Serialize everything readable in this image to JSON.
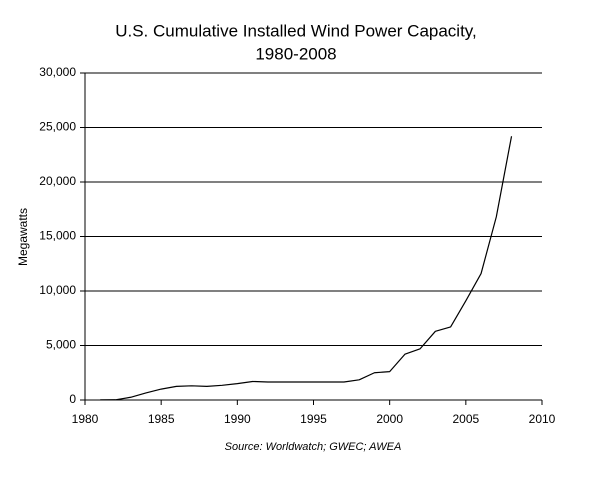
{
  "chart_data": {
    "type": "line",
    "title": [
      "U.S. Cumulative Installed Wind Power Capacity,",
      "1980-2008"
    ],
    "y_label": "Megawatts",
    "source": "Source: Worldwatch; GWEC; AWEA",
    "x": [
      1981,
      1982,
      1983,
      1984,
      1985,
      1986,
      1987,
      1988,
      1989,
      1990,
      1991,
      1992,
      1993,
      1994,
      1995,
      1996,
      1997,
      1998,
      1999,
      2000,
      2001,
      2002,
      2003,
      2004,
      2005,
      2006,
      2007,
      2008
    ],
    "values": [
      10,
      20,
      250,
      650,
      1000,
      1250,
      1300,
      1250,
      1350,
      1500,
      1700,
      1650,
      1650,
      1650,
      1650,
      1650,
      1650,
      1850,
      2500,
      2600,
      4200,
      4700,
      6300,
      6700,
      9100,
      11600,
      16800,
      24200
    ],
    "color": "#000000",
    "xlim": [
      1980,
      2010
    ],
    "xticks": [
      1980,
      1985,
      1990,
      1995,
      2000,
      2005,
      2010
    ],
    "ylim": [
      0,
      30000
    ],
    "yticks": [
      0,
      {
        "value": 5000,
        "label": "5,000"
      },
      {
        "value": 10000,
        "label": "10,000"
      },
      {
        "value": 15000,
        "label": "15,000"
      },
      {
        "value": 20000,
        "label": "20,000"
      },
      {
        "value": 25000,
        "label": "25,000"
      },
      {
        "value": 30000,
        "label": "30,000"
      }
    ],
    "grid": true
  }
}
